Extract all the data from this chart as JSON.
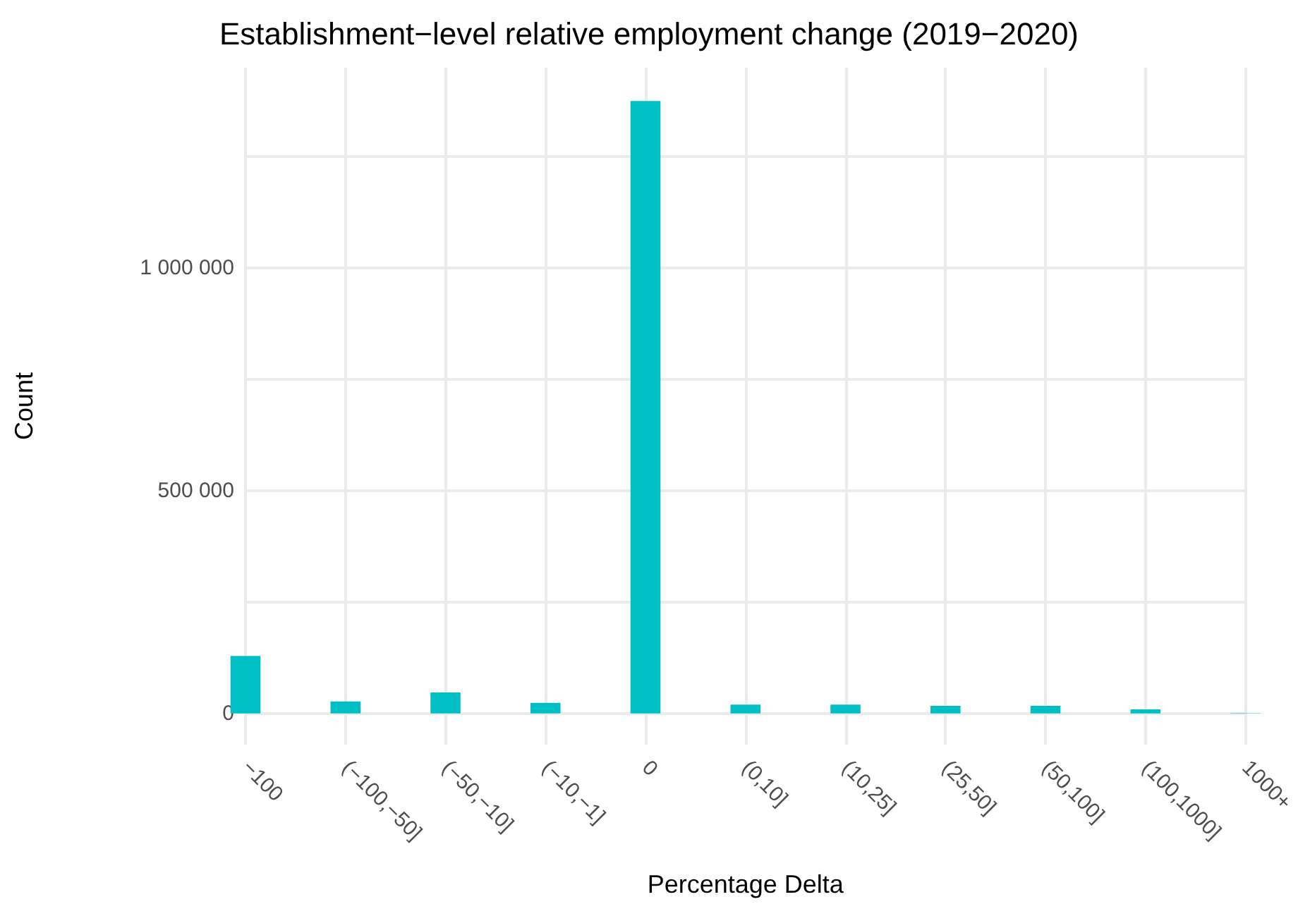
{
  "chart_data": {
    "type": "bar",
    "title": "Establishment−level relative employment change (2019−2020)",
    "xlabel": "Percentage Delta",
    "ylabel": "Count",
    "categories": [
      "−100",
      "(−100,−50]",
      "(−50,−10]",
      "(−10,−1]",
      "0",
      "(0,10]",
      "(10,25]",
      "(25,50]",
      "(50,100]",
      "(100,1000]",
      "1000+"
    ],
    "values": [
      129000,
      27000,
      47000,
      24000,
      1375000,
      20000,
      20000,
      17000,
      17000,
      9000,
      1000
    ],
    "color": "#00bfc4",
    "ylim": [
      -70000,
      1450000
    ],
    "yticks": [
      {
        "value": 0,
        "label": "0"
      },
      {
        "value": 250000,
        "label": null
      },
      {
        "value": 500000,
        "label": "500 000"
      },
      {
        "value": 750000,
        "label": null
      },
      {
        "value": 1000000,
        "label": "1 000 000"
      },
      {
        "value": 1250000,
        "label": null
      }
    ],
    "grid": true
  }
}
